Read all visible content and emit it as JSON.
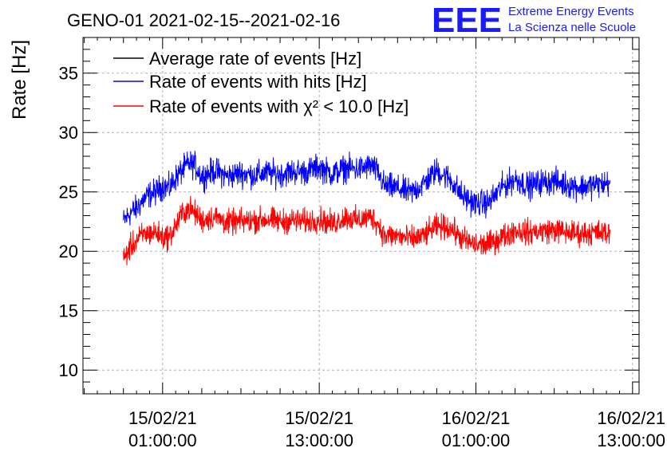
{
  "chart_data": {
    "type": "line",
    "title": "GENO-01 2021-02-15--2021-02-16",
    "xlabel": "",
    "ylabel": "Rate [Hz]",
    "ylim": [
      8,
      38
    ],
    "y_ticks": [
      10,
      15,
      20,
      25,
      30,
      35
    ],
    "x_range_hours": [
      -5.1,
      37.5
    ],
    "x_ticks": [
      {
        "date": "15/02/21",
        "time": "01:00:00",
        "hours": 1
      },
      {
        "date": "15/02/21",
        "time": "13:00:00",
        "hours": 13
      },
      {
        "date": "16/02/21",
        "time": "01:00:00",
        "hours": 25
      },
      {
        "date": "16/02/21",
        "time": "13:00:00",
        "hours": 37
      }
    ],
    "grid": true,
    "legend_position": "top-left",
    "series": [
      {
        "name": "Average rate of events [Hz]",
        "color": "#000000",
        "x_hours": [],
        "values": []
      },
      {
        "name": "Rate of events with hits [Hz]",
        "color": "#0000ff",
        "x_hours": [
          -2.0,
          -1.5,
          -1.0,
          -0.5,
          0.0,
          0.5,
          1.0,
          1.5,
          2.0,
          2.5,
          3.0,
          3.5,
          4.0,
          5.0,
          6.0,
          7.0,
          8.0,
          9.0,
          10.0,
          11.0,
          12.0,
          13.0,
          14.0,
          15.0,
          16.0,
          17.0,
          17.5,
          18.0,
          19.0,
          20.0,
          21.0,
          22.0,
          23.0,
          24.0,
          25.0,
          26.0,
          27.0,
          28.0,
          29.0,
          30.0,
          31.0,
          32.0,
          33.0,
          34.0,
          35.0,
          35.3
        ],
        "values": [
          22.5,
          23.2,
          23.6,
          24.3,
          24.8,
          25.0,
          25.5,
          25.3,
          26.2,
          26.8,
          27.4,
          27.2,
          26.3,
          26.8,
          26.3,
          26.6,
          26.4,
          26.6,
          26.5,
          26.7,
          26.7,
          27.1,
          26.5,
          27.0,
          26.9,
          27.2,
          26.6,
          25.5,
          25.3,
          24.9,
          25.7,
          26.8,
          26.1,
          24.6,
          24.0,
          24.1,
          25.4,
          26.1,
          25.5,
          25.8,
          25.9,
          25.6,
          25.4,
          25.6,
          25.7,
          25.8
        ]
      },
      {
        "name": "Rate of events with χ² < 10.0 [Hz]",
        "color": "#ff0000",
        "x_hours": [
          -2.0,
          -1.5,
          -1.0,
          -0.5,
          0.0,
          0.5,
          1.0,
          1.5,
          2.0,
          2.5,
          3.0,
          3.5,
          4.0,
          5.0,
          6.0,
          7.0,
          8.0,
          9.0,
          10.0,
          11.0,
          12.0,
          13.0,
          14.0,
          15.0,
          16.0,
          17.0,
          17.5,
          18.0,
          19.0,
          20.0,
          21.0,
          22.0,
          23.0,
          24.0,
          25.0,
          26.0,
          27.0,
          28.0,
          29.0,
          30.0,
          31.0,
          32.0,
          33.0,
          34.0,
          35.0,
          35.3
        ],
        "values": [
          19.3,
          20.3,
          20.9,
          21.4,
          21.5,
          21.6,
          21.2,
          21.2,
          22.1,
          23.2,
          23.6,
          23.2,
          22.6,
          22.9,
          22.4,
          22.5,
          22.6,
          22.7,
          22.5,
          22.6,
          22.5,
          22.7,
          22.3,
          22.9,
          22.6,
          22.9,
          22.3,
          21.3,
          21.3,
          21.0,
          21.3,
          22.1,
          22.0,
          21.0,
          20.5,
          20.6,
          21.2,
          21.8,
          21.6,
          21.7,
          21.8,
          21.6,
          21.5,
          21.6,
          21.5,
          21.6
        ]
      }
    ]
  },
  "logo": {
    "mark": "EEE",
    "line1": "Extreme Energy Events",
    "line2": "La Scienza nelle Scuole"
  }
}
